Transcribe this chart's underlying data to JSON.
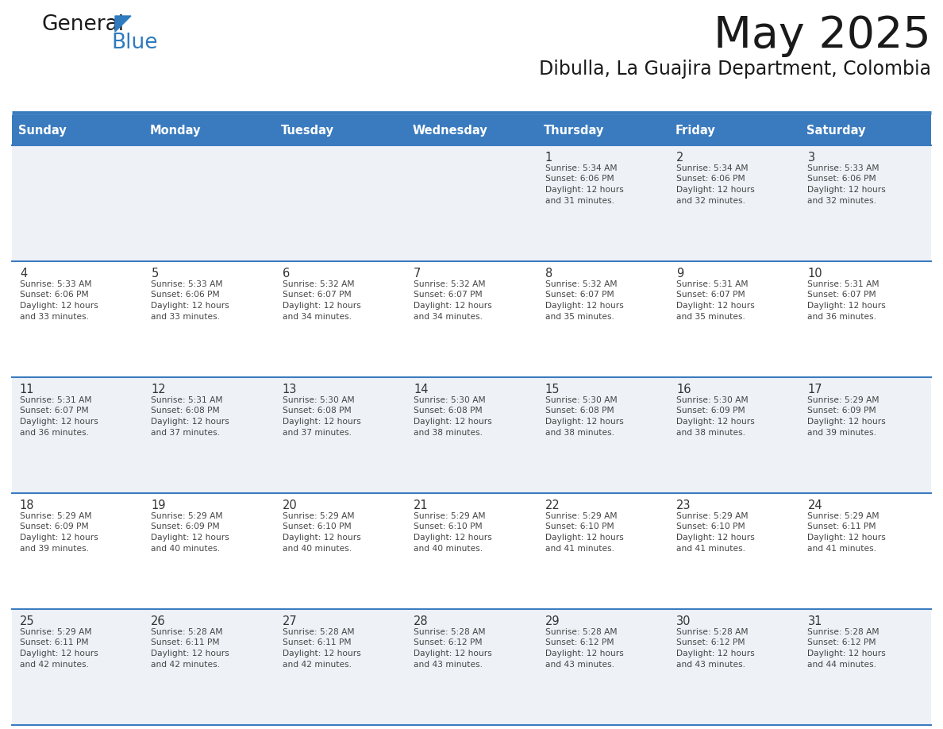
{
  "title": "May 2025",
  "subtitle": "Dibulla, La Guajira Department, Colombia",
  "days_of_week": [
    "Sunday",
    "Monday",
    "Tuesday",
    "Wednesday",
    "Thursday",
    "Friday",
    "Saturday"
  ],
  "header_bg": "#3a7bbf",
  "header_text": "#ffffff",
  "row_bg_even": "#eef2f7",
  "row_bg_odd": "#ffffff",
  "cell_border": "#3a7bbf",
  "day_num_color": "#333333",
  "info_color": "#444444",
  "title_color": "#1a1a1a",
  "subtitle_color": "#1a1a1a",
  "logo_general_color": "#1a1a1a",
  "logo_blue_color": "#2e7bbf",
  "background": "#ffffff",
  "weeks": [
    [
      {
        "day": "",
        "sunrise": "",
        "sunset": "",
        "daylight": ""
      },
      {
        "day": "",
        "sunrise": "",
        "sunset": "",
        "daylight": ""
      },
      {
        "day": "",
        "sunrise": "",
        "sunset": "",
        "daylight": ""
      },
      {
        "day": "",
        "sunrise": "",
        "sunset": "",
        "daylight": ""
      },
      {
        "day": "1",
        "sunrise": "5:34 AM",
        "sunset": "6:06 PM",
        "daylight": "12 hours and 31 minutes."
      },
      {
        "day": "2",
        "sunrise": "5:34 AM",
        "sunset": "6:06 PM",
        "daylight": "12 hours and 32 minutes."
      },
      {
        "day": "3",
        "sunrise": "5:33 AM",
        "sunset": "6:06 PM",
        "daylight": "12 hours and 32 minutes."
      }
    ],
    [
      {
        "day": "4",
        "sunrise": "5:33 AM",
        "sunset": "6:06 PM",
        "daylight": "12 hours and 33 minutes."
      },
      {
        "day": "5",
        "sunrise": "5:33 AM",
        "sunset": "6:06 PM",
        "daylight": "12 hours and 33 minutes."
      },
      {
        "day": "6",
        "sunrise": "5:32 AM",
        "sunset": "6:07 PM",
        "daylight": "12 hours and 34 minutes."
      },
      {
        "day": "7",
        "sunrise": "5:32 AM",
        "sunset": "6:07 PM",
        "daylight": "12 hours and 34 minutes."
      },
      {
        "day": "8",
        "sunrise": "5:32 AM",
        "sunset": "6:07 PM",
        "daylight": "12 hours and 35 minutes."
      },
      {
        "day": "9",
        "sunrise": "5:31 AM",
        "sunset": "6:07 PM",
        "daylight": "12 hours and 35 minutes."
      },
      {
        "day": "10",
        "sunrise": "5:31 AM",
        "sunset": "6:07 PM",
        "daylight": "12 hours and 36 minutes."
      }
    ],
    [
      {
        "day": "11",
        "sunrise": "5:31 AM",
        "sunset": "6:07 PM",
        "daylight": "12 hours and 36 minutes."
      },
      {
        "day": "12",
        "sunrise": "5:31 AM",
        "sunset": "6:08 PM",
        "daylight": "12 hours and 37 minutes."
      },
      {
        "day": "13",
        "sunrise": "5:30 AM",
        "sunset": "6:08 PM",
        "daylight": "12 hours and 37 minutes."
      },
      {
        "day": "14",
        "sunrise": "5:30 AM",
        "sunset": "6:08 PM",
        "daylight": "12 hours and 38 minutes."
      },
      {
        "day": "15",
        "sunrise": "5:30 AM",
        "sunset": "6:08 PM",
        "daylight": "12 hours and 38 minutes."
      },
      {
        "day": "16",
        "sunrise": "5:30 AM",
        "sunset": "6:09 PM",
        "daylight": "12 hours and 38 minutes."
      },
      {
        "day": "17",
        "sunrise": "5:29 AM",
        "sunset": "6:09 PM",
        "daylight": "12 hours and 39 minutes."
      }
    ],
    [
      {
        "day": "18",
        "sunrise": "5:29 AM",
        "sunset": "6:09 PM",
        "daylight": "12 hours and 39 minutes."
      },
      {
        "day": "19",
        "sunrise": "5:29 AM",
        "sunset": "6:09 PM",
        "daylight": "12 hours and 40 minutes."
      },
      {
        "day": "20",
        "sunrise": "5:29 AM",
        "sunset": "6:10 PM",
        "daylight": "12 hours and 40 minutes."
      },
      {
        "day": "21",
        "sunrise": "5:29 AM",
        "sunset": "6:10 PM",
        "daylight": "12 hours and 40 minutes."
      },
      {
        "day": "22",
        "sunrise": "5:29 AM",
        "sunset": "6:10 PM",
        "daylight": "12 hours and 41 minutes."
      },
      {
        "day": "23",
        "sunrise": "5:29 AM",
        "sunset": "6:10 PM",
        "daylight": "12 hours and 41 minutes."
      },
      {
        "day": "24",
        "sunrise": "5:29 AM",
        "sunset": "6:11 PM",
        "daylight": "12 hours and 41 minutes."
      }
    ],
    [
      {
        "day": "25",
        "sunrise": "5:29 AM",
        "sunset": "6:11 PM",
        "daylight": "12 hours and 42 minutes."
      },
      {
        "day": "26",
        "sunrise": "5:28 AM",
        "sunset": "6:11 PM",
        "daylight": "12 hours and 42 minutes."
      },
      {
        "day": "27",
        "sunrise": "5:28 AM",
        "sunset": "6:11 PM",
        "daylight": "12 hours and 42 minutes."
      },
      {
        "day": "28",
        "sunrise": "5:28 AM",
        "sunset": "6:12 PM",
        "daylight": "12 hours and 43 minutes."
      },
      {
        "day": "29",
        "sunrise": "5:28 AM",
        "sunset": "6:12 PM",
        "daylight": "12 hours and 43 minutes."
      },
      {
        "day": "30",
        "sunrise": "5:28 AM",
        "sunset": "6:12 PM",
        "daylight": "12 hours and 43 minutes."
      },
      {
        "day": "31",
        "sunrise": "5:28 AM",
        "sunset": "6:12 PM",
        "daylight": "12 hours and 44 minutes."
      }
    ]
  ]
}
